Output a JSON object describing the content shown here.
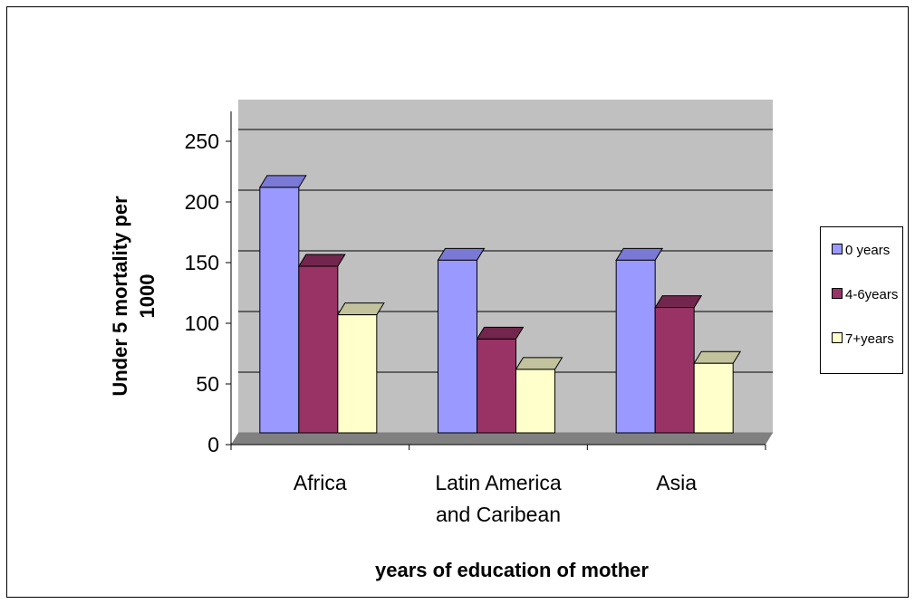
{
  "chart_data": {
    "type": "bar",
    "style": "3d-clustered-column",
    "categories": [
      [
        "Africa"
      ],
      [
        "Latin America",
        "and Caribean"
      ],
      [
        "Asia"
      ]
    ],
    "series": [
      {
        "name": "0 years",
        "values": [
          212,
          152,
          152
        ],
        "color": "#9999ff",
        "top_color": "#7a7ad6"
      },
      {
        "name": "4-6years",
        "values": [
          147,
          87,
          113
        ],
        "color": "#993366",
        "top_color": "#73264d"
      },
      {
        "name": "7+years",
        "values": [
          107,
          62,
          67
        ],
        "color": "#ffffcc",
        "top_color": "#c2c29c"
      }
    ],
    "y_ticks": [
      0,
      50,
      100,
      150,
      200,
      250
    ],
    "ylim": [
      0,
      250
    ],
    "xlabel": "years of education of mother",
    "ylabel": "Under 5 mortality per 1000",
    "legend_position": "right",
    "grid": true,
    "colors": {
      "wall": "#c0c0c0",
      "floor": "#808080",
      "gridline": "#000000"
    }
  }
}
